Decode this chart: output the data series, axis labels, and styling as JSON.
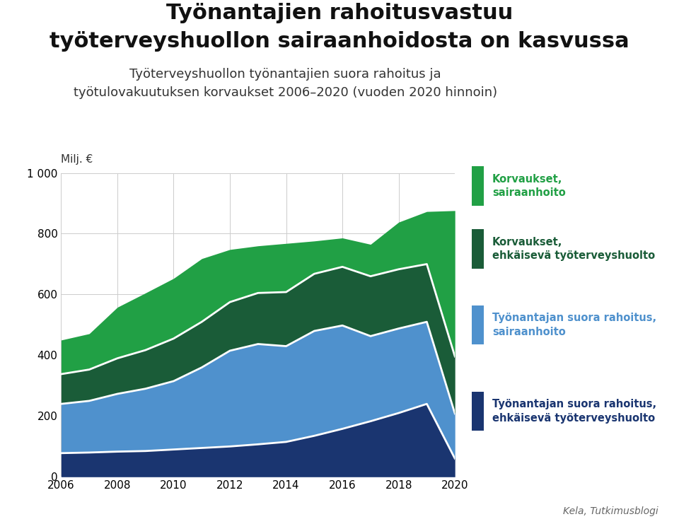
{
  "years": [
    2006,
    2007,
    2008,
    2009,
    2010,
    2011,
    2012,
    2013,
    2014,
    2015,
    2016,
    2017,
    2018,
    2019,
    2020
  ],
  "ehk_suora": [
    78,
    80,
    83,
    85,
    90,
    95,
    100,
    107,
    115,
    135,
    158,
    183,
    210,
    240,
    60
  ],
  "sair_suora": [
    162,
    170,
    190,
    205,
    225,
    265,
    315,
    330,
    315,
    345,
    340,
    280,
    278,
    270,
    148
  ],
  "ehk_korv": [
    98,
    103,
    117,
    127,
    140,
    150,
    160,
    168,
    178,
    188,
    193,
    197,
    195,
    190,
    188
  ],
  "sair_korv": [
    112,
    118,
    168,
    188,
    198,
    208,
    173,
    155,
    160,
    108,
    95,
    105,
    155,
    173,
    480
  ],
  "colors": {
    "ehk_suora": "#1a3570",
    "sair_suora": "#4f91cd",
    "ehk_korv": "#1a5c38",
    "sair_korv": "#21a045"
  },
  "legend_text_colors": {
    "sair_korv": "#21a045",
    "ehk_korv": "#1a5c38",
    "sair_suora": "#4f91cd",
    "ehk_suora": "#1a3570"
  },
  "legend_labels": {
    "sair_korv": "Korvaukset,\nsairaanhoito",
    "ehk_korv": "Korvaukset,\nehkäisevä työterveyshuolto",
    "sair_suora": "Työnantajan suora rahoitus,\nsairaanhoito",
    "ehk_suora": "Työnantajan suora rahoitus,\nehkäisevä työterveyshuolto"
  },
  "title_line1": "Työnantajien rahoitusvastuu",
  "title_line2": "työterveyshuollon sairaanhoidosta on kasvussa",
  "subtitle_line1": "Työterveyshuollon työnantajien suora rahoitus ja",
  "subtitle_line2": "työtulovakuutuksen korvaukset 2006–2020 (vuoden 2020 hinnoin)",
  "ylabel": "Milj. €",
  "ylim": [
    0,
    1000
  ],
  "yticks": [
    0,
    200,
    400,
    600,
    800,
    1000
  ],
  "source": "Kela, Tutkimusblogi",
  "background": "#ffffff",
  "white": "#ffffff",
  "grid_color": "#cccccc"
}
